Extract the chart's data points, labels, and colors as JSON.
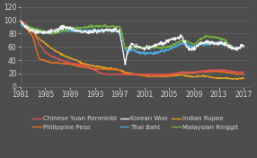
{
  "background_color": "#4d4d4d",
  "plot_bg_color": "#4d4d4d",
  "grid_color": "#666666",
  "text_color": "#d9d9d9",
  "xlim": [
    1981,
    2018
  ],
  "ylim": [
    0,
    120
  ],
  "yticks": [
    0,
    20,
    40,
    60,
    80,
    100,
    120
  ],
  "xticks": [
    1981,
    1985,
    1989,
    1993,
    1997,
    2001,
    2005,
    2009,
    2013,
    2017
  ],
  "series": {
    "Chinese Yuan Renminbi": {
      "color": "#e05050",
      "linewidth": 1.0
    },
    "Indian Rupee": {
      "color": "#e0a020",
      "linewidth": 1.0
    },
    "Korean Won": {
      "color": "#f0f0f0",
      "linewidth": 1.0
    },
    "Thai Baht": {
      "color": "#4da6e0",
      "linewidth": 1.0
    },
    "Philippine Peso": {
      "color": "#e07020",
      "linewidth": 1.0
    },
    "Malaysian Ringgit": {
      "color": "#70b040",
      "linewidth": 1.0
    }
  },
  "legend_fontsize": 5.0,
  "tick_fontsize": 5.5
}
